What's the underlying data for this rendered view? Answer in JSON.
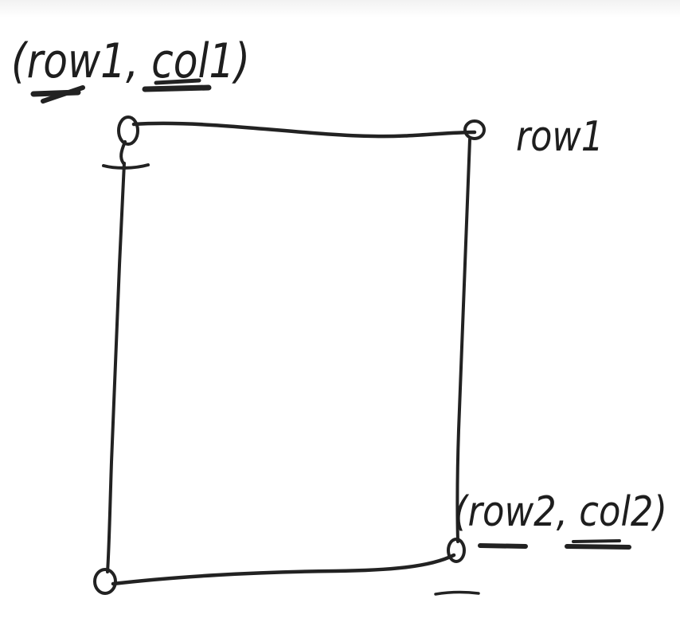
{
  "labels": {
    "top_left": "(row1, col1)",
    "top_right": "row1",
    "bottom_right": "(row2, col2)"
  },
  "colors": {
    "ink": "#222222",
    "background": "#ffffff"
  }
}
